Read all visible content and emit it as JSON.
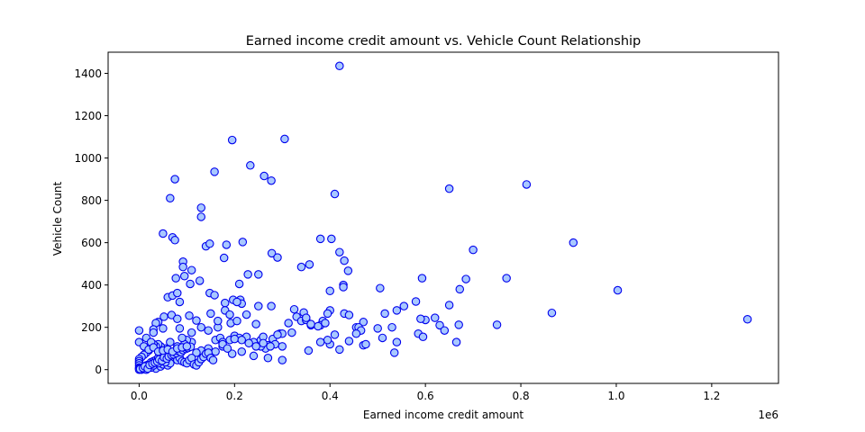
{
  "chart_data": {
    "type": "scatter",
    "title": "Earned income credit amount vs. Vehicle Count Relationship",
    "xlabel": "Earned income credit amount",
    "ylabel": "Vehicle Count",
    "x_offset_label": "1e6",
    "xlim": [
      -65000,
      1340000
    ],
    "ylim": [
      -65,
      1500
    ],
    "xticks": [
      0,
      200000,
      400000,
      600000,
      800000,
      1000000,
      1200000
    ],
    "xtick_labels": [
      "0.0",
      "0.2",
      "0.4",
      "0.6",
      "0.8",
      "1.0",
      "1.2"
    ],
    "yticks": [
      0,
      200,
      400,
      600,
      800,
      1000,
      1200,
      1400
    ],
    "ytick_labels": [
      "0",
      "200",
      "400",
      "600",
      "800",
      "1000",
      "1200",
      "1400"
    ],
    "grid": false,
    "marker_face": "#a8c8ff",
    "marker_edge": "#0000ee",
    "points": [
      [
        420000,
        1435
      ],
      [
        195000,
        1085
      ],
      [
        305000,
        1090
      ],
      [
        233000,
        965
      ],
      [
        158000,
        935
      ],
      [
        75000,
        900
      ],
      [
        262000,
        915
      ],
      [
        277000,
        893
      ],
      [
        65000,
        810
      ],
      [
        410000,
        830
      ],
      [
        650000,
        855
      ],
      [
        812000,
        875
      ],
      [
        130000,
        765
      ],
      [
        130000,
        722
      ],
      [
        50000,
        643
      ],
      [
        70000,
        625
      ],
      [
        75000,
        612
      ],
      [
        140000,
        583
      ],
      [
        148000,
        595
      ],
      [
        183000,
        590
      ],
      [
        217000,
        603
      ],
      [
        380000,
        618
      ],
      [
        403000,
        618
      ],
      [
        910000,
        600
      ],
      [
        700000,
        566
      ],
      [
        278000,
        550
      ],
      [
        290000,
        530
      ],
      [
        178000,
        528
      ],
      [
        420000,
        555
      ],
      [
        430000,
        515
      ],
      [
        340000,
        485
      ],
      [
        357000,
        497
      ],
      [
        438000,
        467
      ],
      [
        92000,
        510
      ],
      [
        92000,
        485
      ],
      [
        110000,
        470
      ],
      [
        95000,
        442
      ],
      [
        127000,
        420
      ],
      [
        77000,
        432
      ],
      [
        250000,
        450
      ],
      [
        228000,
        450
      ],
      [
        593000,
        432
      ],
      [
        685000,
        428
      ],
      [
        770000,
        432
      ],
      [
        1003000,
        375
      ],
      [
        672000,
        380
      ],
      [
        505000,
        385
      ],
      [
        400000,
        372
      ],
      [
        428000,
        400
      ],
      [
        428000,
        390
      ],
      [
        210000,
        405
      ],
      [
        107000,
        405
      ],
      [
        60000,
        342
      ],
      [
        70000,
        350
      ],
      [
        80000,
        362
      ],
      [
        85000,
        320
      ],
      [
        148000,
        362
      ],
      [
        158000,
        352
      ],
      [
        197000,
        330
      ],
      [
        212000,
        330
      ],
      [
        215000,
        312
      ],
      [
        205000,
        320
      ],
      [
        180000,
        315
      ],
      [
        250000,
        300
      ],
      [
        277000,
        300
      ],
      [
        325000,
        285
      ],
      [
        400000,
        280
      ],
      [
        395000,
        265
      ],
      [
        430000,
        265
      ],
      [
        440000,
        258
      ],
      [
        345000,
        270
      ],
      [
        580000,
        322
      ],
      [
        555000,
        300
      ],
      [
        650000,
        305
      ],
      [
        600000,
        235
      ],
      [
        620000,
        245
      ],
      [
        630000,
        210
      ],
      [
        670000,
        212
      ],
      [
        750000,
        212
      ],
      [
        865000,
        268
      ],
      [
        1275000,
        238
      ],
      [
        540000,
        280
      ],
      [
        515000,
        265
      ],
      [
        590000,
        240
      ],
      [
        470000,
        225
      ],
      [
        455000,
        200
      ],
      [
        330000,
        250
      ],
      [
        360000,
        210
      ],
      [
        385000,
        230
      ],
      [
        380000,
        210
      ],
      [
        313000,
        220
      ],
      [
        180000,
        280
      ],
      [
        225000,
        260
      ],
      [
        190000,
        260
      ],
      [
        192000,
        220
      ],
      [
        205000,
        230
      ],
      [
        150000,
        265
      ],
      [
        130000,
        200
      ],
      [
        120000,
        232
      ],
      [
        105000,
        255
      ],
      [
        68000,
        258
      ],
      [
        52000,
        250
      ],
      [
        40000,
        225
      ],
      [
        35000,
        220
      ],
      [
        30000,
        190
      ],
      [
        50000,
        195
      ],
      [
        0,
        185
      ],
      [
        15000,
        150
      ],
      [
        85000,
        195
      ],
      [
        110000,
        175
      ],
      [
        145000,
        185
      ],
      [
        165000,
        200
      ],
      [
        160000,
        140
      ],
      [
        170000,
        150
      ],
      [
        175000,
        130
      ],
      [
        190000,
        140
      ],
      [
        200000,
        160
      ],
      [
        210000,
        150
      ],
      [
        225000,
        155
      ],
      [
        240000,
        130
      ],
      [
        255000,
        140
      ],
      [
        260000,
        155
      ],
      [
        280000,
        145
      ],
      [
        295000,
        170
      ],
      [
        300000,
        170
      ],
      [
        245000,
        215
      ],
      [
        290000,
        165
      ],
      [
        320000,
        175
      ],
      [
        340000,
        230
      ],
      [
        350000,
        235
      ],
      [
        375000,
        205
      ],
      [
        390000,
        220
      ],
      [
        410000,
        165
      ],
      [
        460000,
        200
      ],
      [
        465000,
        185
      ],
      [
        500000,
        195
      ],
      [
        530000,
        200
      ],
      [
        585000,
        170
      ],
      [
        595000,
        155
      ],
      [
        640000,
        185
      ],
      [
        665000,
        130
      ],
      [
        510000,
        150
      ],
      [
        540000,
        130
      ],
      [
        535000,
        80
      ],
      [
        470000,
        115
      ],
      [
        455000,
        170
      ],
      [
        440000,
        135
      ],
      [
        420000,
        95
      ],
      [
        400000,
        120
      ],
      [
        395000,
        140
      ],
      [
        380000,
        130
      ],
      [
        355000,
        90
      ],
      [
        300000,
        45
      ],
      [
        285000,
        120
      ],
      [
        270000,
        115
      ],
      [
        265000,
        100
      ],
      [
        255000,
        110
      ],
      [
        245000,
        110
      ],
      [
        240000,
        65
      ],
      [
        270000,
        55
      ],
      [
        215000,
        85
      ],
      [
        195000,
        75
      ],
      [
        175000,
        110
      ],
      [
        160000,
        85
      ],
      [
        145000,
        100
      ],
      [
        130000,
        90
      ],
      [
        120000,
        80
      ],
      [
        110000,
        130
      ],
      [
        100000,
        140
      ],
      [
        95000,
        120
      ],
      [
        90000,
        150
      ],
      [
        85000,
        100
      ],
      [
        80000,
        110
      ],
      [
        70000,
        80
      ],
      [
        65000,
        130
      ],
      [
        55000,
        100
      ],
      [
        45000,
        110
      ],
      [
        40000,
        120
      ],
      [
        35000,
        110
      ],
      [
        30000,
        120
      ],
      [
        25000,
        130
      ],
      [
        20000,
        90
      ],
      [
        15000,
        80
      ],
      [
        10000,
        70
      ],
      [
        5000,
        60
      ],
      [
        0,
        50
      ],
      [
        0,
        40
      ],
      [
        0,
        30
      ],
      [
        0,
        20
      ],
      [
        0,
        10
      ],
      [
        0,
        5
      ],
      [
        5000,
        0
      ],
      [
        10000,
        10
      ],
      [
        15000,
        20
      ],
      [
        20000,
        25
      ],
      [
        25000,
        35
      ],
      [
        30000,
        40
      ],
      [
        35000,
        45
      ],
      [
        40000,
        55
      ],
      [
        45000,
        60
      ],
      [
        50000,
        70
      ],
      [
        55000,
        65
      ],
      [
        60000,
        80
      ],
      [
        65000,
        75
      ],
      [
        70000,
        60
      ],
      [
        75000,
        50
      ],
      [
        80000,
        45
      ],
      [
        85000,
        55
      ],
      [
        90000,
        40
      ],
      [
        95000,
        35
      ],
      [
        100000,
        30
      ],
      [
        105000,
        45
      ],
      [
        110000,
        55
      ],
      [
        115000,
        25
      ],
      [
        120000,
        20
      ],
      [
        125000,
        35
      ],
      [
        130000,
        50
      ],
      [
        135000,
        60
      ],
      [
        140000,
        75
      ],
      [
        145000,
        80
      ],
      [
        150000,
        55
      ],
      [
        155000,
        45
      ],
      [
        35000,
        5
      ],
      [
        25000,
        10
      ],
      [
        20000,
        15
      ],
      [
        30000,
        20
      ],
      [
        45000,
        15
      ],
      [
        50000,
        25
      ],
      [
        60000,
        20
      ],
      [
        65000,
        30
      ],
      [
        55000,
        35
      ],
      [
        40000,
        30
      ],
      [
        15000,
        0
      ],
      [
        0,
        0
      ],
      [
        2000,
        3
      ],
      [
        8000,
        8
      ],
      [
        12000,
        15
      ],
      [
        18000,
        5
      ],
      [
        22000,
        22
      ],
      [
        28000,
        28
      ],
      [
        33000,
        33
      ],
      [
        38000,
        38
      ],
      [
        42000,
        48
      ],
      [
        48000,
        42
      ],
      [
        52000,
        58
      ],
      [
        58000,
        52
      ],
      [
        62000,
        62
      ],
      [
        68000,
        68
      ],
      [
        72000,
        72
      ],
      [
        78000,
        78
      ],
      [
        82000,
        88
      ],
      [
        88000,
        82
      ],
      [
        92000,
        92
      ],
      [
        98000,
        98
      ],
      [
        102000,
        102
      ],
      [
        108000,
        108
      ],
      [
        0,
        130
      ],
      [
        10000,
        110
      ],
      [
        20000,
        95
      ],
      [
        30000,
        105
      ],
      [
        40000,
        85
      ],
      [
        50000,
        90
      ],
      [
        60000,
        95
      ],
      [
        70000,
        85
      ],
      [
        80000,
        100
      ],
      [
        90000,
        105
      ],
      [
        100000,
        110
      ],
      [
        30000,
        175
      ],
      [
        80000,
        240
      ],
      [
        165000,
        230
      ],
      [
        175000,
        120
      ],
      [
        185000,
        100
      ],
      [
        200000,
        145
      ],
      [
        215000,
        140
      ],
      [
        230000,
        125
      ],
      [
        260000,
        125
      ],
      [
        275000,
        110
      ],
      [
        300000,
        110
      ],
      [
        350000,
        245
      ],
      [
        360000,
        215
      ],
      [
        475000,
        120
      ]
    ]
  }
}
